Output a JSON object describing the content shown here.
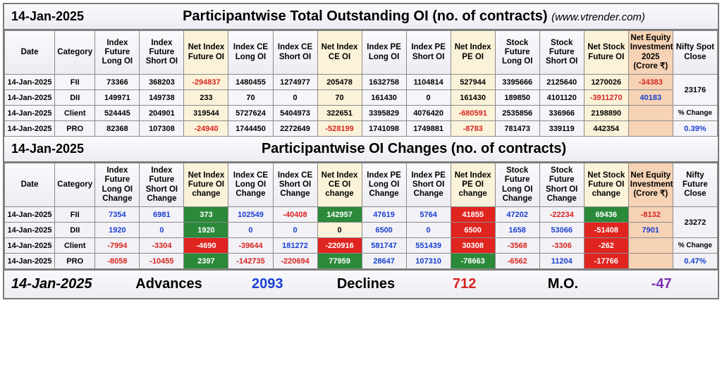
{
  "header1": {
    "date": "14-Jan-2025",
    "title": "Participantwise Total Outstanding OI (no. of contracts)",
    "sub": "(www.vtrender.com)"
  },
  "header2": {
    "date": "14-Jan-2025",
    "title": "Participantwise OI Changes (no. of contracts)"
  },
  "cols1": [
    "Date",
    "Category",
    "Index Future Long OI",
    "Index Future Short OI",
    "Net Index Future OI",
    "Index CE Long OI",
    "Index CE Short OI",
    "Net Index CE OI",
    "Index PE Long OI",
    "Index PE Short OI",
    "Net Index PE OI",
    "Stock Future Long OI",
    "Stock Future Short OI",
    "Net Stock Future OI",
    "Net Equity Investment 2025 (Crore ₹)",
    "Nifty Spot Close"
  ],
  "cols2": [
    "Date",
    "Category",
    "Index Future Long OI Change",
    "Index Future Short OI Change",
    "Net Index Future OI change",
    "Index CE Long OI Change",
    "Index CE Short OI Change",
    "Net Index CE OI change",
    "Index PE Long OI Change",
    "Index PE Short OI Change",
    "Net Index PE OI change",
    "Stock Future Long OI Change",
    "Stock Future Short OI Change",
    "Net Stock Future OI change",
    "Net Equity Investment (Crore ₹)",
    "Nifty Future Close"
  ],
  "t1": {
    "rows": [
      {
        "date": "14-Jan-2025",
        "cat": "FII",
        "ifl": "73366",
        "ifs": "368203",
        "nif": "-294837",
        "cel": "1480455",
        "ces": "1274977",
        "nce": "205478",
        "pel": "1632758",
        "pes": "1104814",
        "npe": "527944",
        "sfl": "3395666",
        "sfs": "2125640",
        "nsf": "1270026",
        "eq": "-34383"
      },
      {
        "date": "14-Jan-2025",
        "cat": "DII",
        "ifl": "149971",
        "ifs": "149738",
        "nif": "233",
        "cel": "70",
        "ces": "0",
        "nce": "70",
        "pel": "161430",
        "pes": "0",
        "npe": "161430",
        "sfl": "189850",
        "sfs": "4101120",
        "nsf": "-3911270",
        "eq": "40183"
      },
      {
        "date": "14-Jan-2025",
        "cat": "Client",
        "ifl": "524445",
        "ifs": "204901",
        "nif": "319544",
        "cel": "5727624",
        "ces": "5404973",
        "nce": "322651",
        "pel": "3395829",
        "pes": "4076420",
        "npe": "-680591",
        "sfl": "2535856",
        "sfs": "336966",
        "nsf": "2198890",
        "eq": ""
      },
      {
        "date": "14-Jan-2025",
        "cat": "PRO",
        "ifl": "82368",
        "ifs": "107308",
        "nif": "-24940",
        "cel": "1744450",
        "ces": "2272649",
        "nce": "-528199",
        "pel": "1741098",
        "pes": "1749881",
        "npe": "-8783",
        "sfl": "781473",
        "sfs": "339119",
        "nsf": "442354",
        "eq": ""
      }
    ],
    "spot": "23176",
    "pctLabel": "% Change",
    "pct": "0.39%"
  },
  "t2": {
    "rows": [
      {
        "date": "14-Jan-2025",
        "cat": "FII",
        "ifl": "7354",
        "ifs": "6981",
        "nif": "373",
        "nif_c": "g",
        "cel": "102549",
        "ces": "-40408",
        "nce": "142957",
        "nce_c": "g",
        "pel": "47619",
        "pes": "5764",
        "npe": "41855",
        "npe_c": "r",
        "sfl": "47202",
        "sfs": "-22234",
        "nsf": "69436",
        "nsf_c": "g",
        "eq": "-8132"
      },
      {
        "date": "14-Jan-2025",
        "cat": "DII",
        "ifl": "1920",
        "ifs": "0",
        "nif": "1920",
        "nif_c": "g",
        "cel": "0",
        "ces": "0",
        "nce": "0",
        "nce_c": "y",
        "pel": "6500",
        "pes": "0",
        "npe": "6500",
        "npe_c": "r",
        "sfl": "1658",
        "sfs": "53066",
        "nsf": "-51408",
        "nsf_c": "r",
        "eq": "7901"
      },
      {
        "date": "14-Jan-2025",
        "cat": "Client",
        "ifl": "-7994",
        "ifs": "-3304",
        "nif": "-4690",
        "nif_c": "r",
        "cel": "-39644",
        "ces": "181272",
        "nce": "-220916",
        "nce_c": "r",
        "pel": "581747",
        "pes": "551439",
        "npe": "30308",
        "npe_c": "r",
        "sfl": "-3568",
        "sfs": "-3306",
        "nsf": "-262",
        "nsf_c": "r",
        "eq": ""
      },
      {
        "date": "14-Jan-2025",
        "cat": "PRO",
        "ifl": "-8058",
        "ifs": "-10455",
        "nif": "2397",
        "nif_c": "g",
        "cel": "-142735",
        "ces": "-220694",
        "nce": "77959",
        "nce_c": "g",
        "pel": "28647",
        "pes": "107310",
        "npe": "-78663",
        "npe_c": "g",
        "sfl": "-6562",
        "sfs": "11204",
        "nsf": "-17766",
        "nsf_c": "r",
        "eq": ""
      }
    ],
    "fut": "23272",
    "pctLabel": "% Change",
    "pct": "0.47%"
  },
  "footer": {
    "date": "14-Jan-2025",
    "advLabel": "Advances",
    "adv": "2093",
    "decLabel": "Declines",
    "dec": "712",
    "moLabel": "M.O.",
    "mo": "-47"
  },
  "hl_cols": [
    4,
    7,
    10,
    13
  ],
  "peach_col": 14
}
